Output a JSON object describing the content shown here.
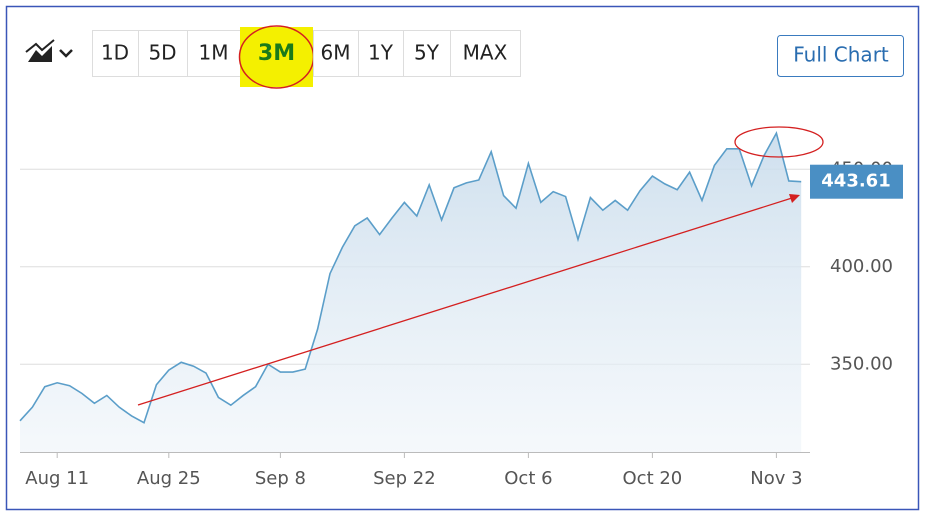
{
  "toolbar": {
    "ranges": [
      "1D",
      "5D",
      "1M",
      "3M",
      "6M",
      "1Y",
      "5Y",
      "MAX"
    ],
    "selected": "3M",
    "full_chart": "Full Chart"
  },
  "chart_data": {
    "type": "area",
    "categories": [
      null,
      null,
      null,
      "Aug 11",
      null,
      null,
      null,
      null,
      null,
      null,
      null,
      null,
      "Aug 25",
      null,
      null,
      null,
      null,
      null,
      null,
      null,
      null,
      "Sep 8",
      null,
      null,
      null,
      null,
      null,
      null,
      null,
      null,
      null,
      "Sep 22",
      null,
      null,
      null,
      null,
      null,
      null,
      null,
      null,
      null,
      "Oct 6",
      null,
      null,
      null,
      null,
      null,
      null,
      null,
      null,
      null,
      "Oct 20",
      null,
      null,
      null,
      null,
      null,
      null,
      null,
      null,
      null,
      "Nov 3",
      null,
      null
    ],
    "series": [
      {
        "color": "#5b9ec9",
        "values": [
          321,
          328,
          338.5,
          340.5,
          339,
          335,
          330,
          334,
          328,
          323.5,
          320,
          339.5,
          347,
          351,
          349,
          345.5,
          333,
          329,
          334,
          338.5,
          350,
          346,
          346,
          347.5,
          368,
          396.5,
          410,
          421,
          425,
          416.5,
          425,
          433,
          426,
          442,
          424,
          440.5,
          443,
          444.5,
          459,
          436.5,
          430,
          453,
          433,
          438.5,
          436,
          414,
          435.5,
          429,
          434,
          429,
          439,
          446.5,
          442.5,
          439.5,
          448.5,
          434,
          452,
          460.5,
          460.5,
          441.5,
          457,
          468.5,
          444,
          443.61
        ]
      }
    ],
    "ylim": [
      305,
      495
    ],
    "yticks": [
      {
        "value": 350,
        "label": "350.00"
      },
      {
        "value": 400,
        "label": "400.00"
      },
      {
        "value": 450,
        "label": "450.00"
      }
    ],
    "grid": true
  }
}
